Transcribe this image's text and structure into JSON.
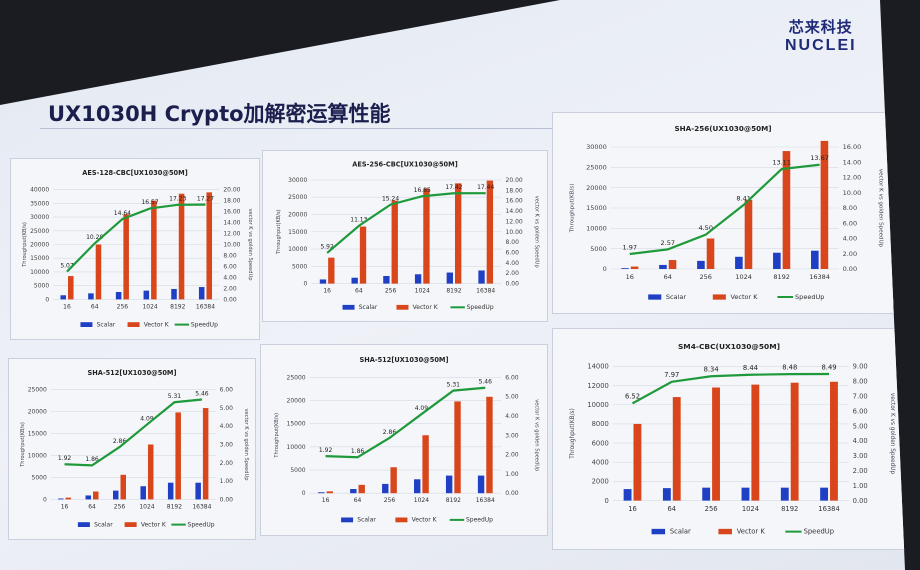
{
  "header": {
    "title": "UX1030H Crypto加解密运算性能",
    "logo_cn": "芯来科技",
    "logo_en": "NUCLEI"
  },
  "colors": {
    "scalar": "#1f3fc4",
    "vector": "#d9461b",
    "speedup": "#1f9a3a"
  },
  "chart_data": [
    {
      "type": "bar",
      "title": "AES-128-CBC[UX1030@50M]",
      "categories": [
        "16",
        "64",
        "256",
        "1024",
        "8192",
        "16384"
      ],
      "series": [
        {
          "name": "Scalar",
          "values": [
            1500,
            2200,
            2700,
            3200,
            3800,
            4500
          ]
        },
        {
          "name": "Vector K",
          "values": [
            8500,
            20000,
            31000,
            36000,
            38500,
            39000
          ]
        },
        {
          "name": "SpeedUp",
          "type": "line",
          "axis": "right",
          "values": [
            5.07,
            10.2,
            14.64,
            16.57,
            17.23,
            17.27
          ]
        }
      ],
      "ylabel": "Throughput(KB/s)",
      "y2label": "vector K vs golden SpeedUp",
      "ylim": [
        0,
        40000
      ],
      "ystep": 5000,
      "y2lim": [
        0,
        20
      ],
      "y2step": 2,
      "legend": "bottom"
    },
    {
      "type": "bar",
      "title": "AES-256-CBC[UX1030@50M]",
      "categories": [
        "16",
        "64",
        "256",
        "1024",
        "8192",
        "16384"
      ],
      "series": [
        {
          "name": "Scalar",
          "values": [
            1200,
            1700,
            2200,
            2700,
            3200,
            3800
          ]
        },
        {
          "name": "Vector K",
          "values": [
            7500,
            16500,
            24000,
            27500,
            29000,
            29800
          ]
        },
        {
          "name": "SpeedUp",
          "type": "line",
          "axis": "right",
          "values": [
            5.92,
            11.13,
            15.24,
            16.85,
            17.42,
            17.44
          ]
        }
      ],
      "ylabel": "Throughput(KB/s)",
      "y2label": "vector K vs golden SpeedUp",
      "ylim": [
        0,
        30000
      ],
      "ystep": 5000,
      "y2lim": [
        0,
        20
      ],
      "y2step": 2,
      "legend": "bottom"
    },
    {
      "type": "bar",
      "title": "SHA-256(UX1030@50M]",
      "categories": [
        "16",
        "64",
        "256",
        "1024",
        "8192",
        "16384"
      ],
      "series": [
        {
          "name": "Scalar",
          "values": [
            200,
            1000,
            2000,
            3000,
            4000,
            4500
          ]
        },
        {
          "name": "Vector K",
          "values": [
            600,
            2200,
            7500,
            17000,
            29000,
            31500
          ]
        },
        {
          "name": "SpeedUp",
          "type": "line",
          "axis": "right",
          "values": [
            1.97,
            2.57,
            4.5,
            8.41,
            13.11,
            13.67
          ]
        }
      ],
      "ylabel": "Throughput(KB/s)",
      "y2label": "vector K vs golden SpeedUp",
      "ylim": [
        0,
        30000
      ],
      "ystep": 5000,
      "y2lim": [
        0,
        16
      ],
      "y2step": 2,
      "legend": "bottom"
    },
    {
      "type": "bar",
      "title": "SHA-512[UX1030@50M]",
      "categories": [
        "16",
        "64",
        "256",
        "1024",
        "8192",
        "16384"
      ],
      "series": [
        {
          "name": "Scalar",
          "values": [
            200,
            900,
            2000,
            3000,
            3800,
            3800
          ]
        },
        {
          "name": "Vector K",
          "values": [
            400,
            1800,
            5600,
            12500,
            19800,
            20800
          ]
        },
        {
          "name": "SpeedUp",
          "type": "line",
          "axis": "right",
          "values": [
            1.92,
            1.86,
            2.86,
            4.09,
            5.31,
            5.46
          ]
        }
      ],
      "ylabel": "Throughput(KB/s)",
      "y2label": "vector K vs golden SpeedUp",
      "ylim": [
        0,
        25000
      ],
      "ystep": 5000,
      "y2lim": [
        0,
        6
      ],
      "y2step": 1,
      "legend": "bottom"
    },
    {
      "type": "bar",
      "title": "SHA-512[UX1030@50M]",
      "categories": [
        "16",
        "64",
        "256",
        "1024",
        "8192",
        "16384"
      ],
      "series": [
        {
          "name": "Scalar",
          "values": [
            200,
            900,
            2000,
            3000,
            3800,
            3800
          ]
        },
        {
          "name": "Vector K",
          "values": [
            400,
            1800,
            5600,
            12500,
            19800,
            20800
          ]
        },
        {
          "name": "SpeedUp",
          "type": "line",
          "axis": "right",
          "values": [
            1.92,
            1.86,
            2.86,
            4.09,
            5.31,
            5.46
          ]
        }
      ],
      "ylabel": "Throughput(KB/s)",
      "y2label": "vector K vs golden SpeedUp",
      "ylim": [
        0,
        25000
      ],
      "ystep": 5000,
      "y2lim": [
        0,
        6
      ],
      "y2step": 1,
      "legend": "bottom"
    },
    {
      "type": "bar",
      "title": "SM4-CBC(UX1030@50M]",
      "categories": [
        "16",
        "64",
        "256",
        "1024",
        "8192",
        "16384"
      ],
      "series": [
        {
          "name": "Scalar",
          "values": [
            1200,
            1300,
            1350,
            1350,
            1350,
            1350
          ]
        },
        {
          "name": "Vector K",
          "values": [
            8000,
            10800,
            11800,
            12100,
            12300,
            12400
          ]
        },
        {
          "name": "SpeedUp",
          "type": "line",
          "axis": "right",
          "values": [
            6.52,
            7.97,
            8.34,
            8.44,
            8.48,
            8.49
          ]
        }
      ],
      "ylabel": "Throughput(KB/s)",
      "y2label": "vector K vs golden SpeedUp",
      "ylim": [
        0,
        14000
      ],
      "ystep": 2000,
      "y2lim": [
        0,
        9
      ],
      "y2step": 1,
      "legend": "bottom"
    }
  ]
}
